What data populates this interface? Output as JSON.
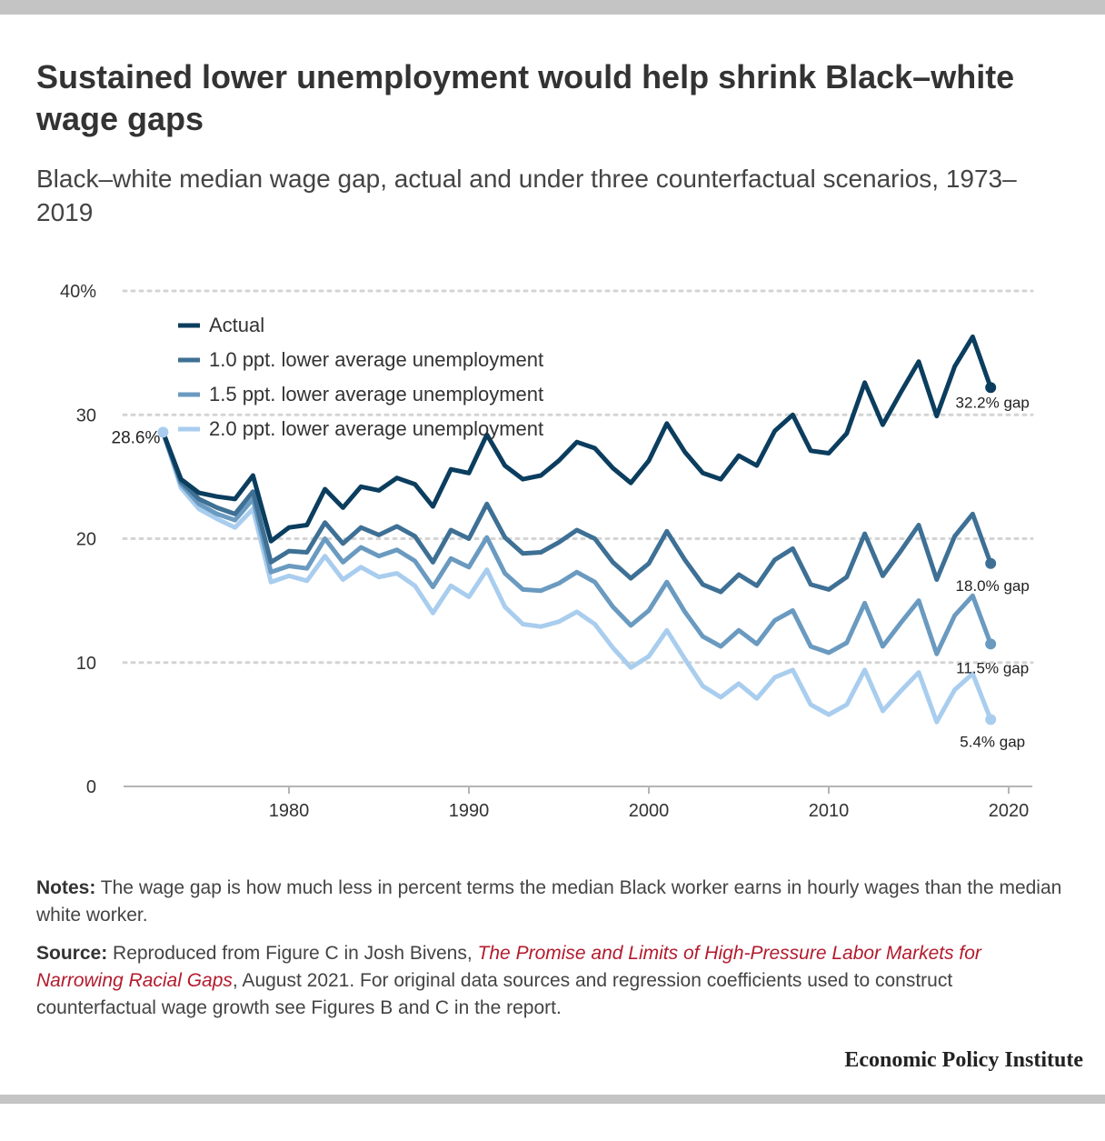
{
  "title": "Sustained lower unemployment would help shrink Black–white wage gaps",
  "subtitle": "Black–white median wage gap, actual and under three counterfactual scenarios, 1973–2019",
  "notes": {
    "notes_label": "Notes:",
    "notes_text": " The wage gap is how much less in percent terms the median Black worker earns in hourly wages than the median white worker.",
    "source_label": "Source:",
    "source_text_before": " Reproduced from Figure C in Josh Bivens, ",
    "source_link": "The Promise and Limits of High-Pressure Labor Markets for Narrowing Racial Gaps",
    "source_text_after": ", August 2021. For original data sources and regression coefficients used to construct counterfactual wage growth see Figures B and C in the report."
  },
  "brand": "Economic Policy Institute",
  "chart_data": {
    "type": "line",
    "title": "",
    "xlabel": "",
    "ylabel": "",
    "xlim": [
      1970,
      2020
    ],
    "ylim": [
      0,
      40
    ],
    "x_ticks": [
      1980,
      1990,
      2000,
      2010,
      2020
    ],
    "y_ticks": [
      0,
      10,
      20,
      30,
      40
    ],
    "y_tick_labels": [
      "0",
      "10",
      "20",
      "30",
      "40%"
    ],
    "grid": "horizontal dotted",
    "legend_position": "top-left",
    "x": [
      1973,
      1974,
      1975,
      1976,
      1977,
      1978,
      1979,
      1980,
      1981,
      1982,
      1983,
      1984,
      1985,
      1986,
      1987,
      1988,
      1989,
      1990,
      1991,
      1992,
      1993,
      1994,
      1995,
      1996,
      1997,
      1998,
      1999,
      2000,
      2001,
      2002,
      2003,
      2004,
      2005,
      2006,
      2007,
      2008,
      2009,
      2010,
      2011,
      2012,
      2013,
      2014,
      2015,
      2016,
      2017,
      2018,
      2019
    ],
    "series": [
      {
        "name": "Actual",
        "color": "#0b3d5e",
        "end_label": "32.2% gap",
        "values": [
          28.6,
          24.8,
          23.7,
          23.4,
          23.2,
          25.1,
          19.8,
          20.9,
          21.1,
          24.0,
          22.5,
          24.2,
          23.9,
          24.9,
          24.4,
          22.6,
          25.6,
          25.3,
          28.4,
          25.9,
          24.8,
          25.1,
          26.3,
          27.8,
          27.3,
          25.7,
          24.5,
          26.3,
          29.3,
          27.0,
          25.3,
          24.8,
          26.7,
          25.9,
          28.7,
          30.0,
          27.1,
          26.9,
          28.5,
          32.6,
          29.2,
          31.8,
          34.3,
          29.9,
          33.9,
          36.3,
          32.2
        ]
      },
      {
        "name": "1.0 ppt. lower average unemployment",
        "color": "#3e7095",
        "end_label": "18.0% gap",
        "values": [
          28.6,
          24.6,
          23.2,
          22.5,
          22.0,
          23.8,
          18.1,
          19.0,
          18.9,
          21.3,
          19.6,
          20.9,
          20.3,
          21.0,
          20.2,
          18.1,
          20.7,
          20.0,
          22.8,
          20.1,
          18.8,
          18.9,
          19.7,
          20.7,
          20.0,
          18.1,
          16.8,
          18.0,
          20.6,
          18.3,
          16.3,
          15.7,
          17.1,
          16.2,
          18.3,
          19.2,
          16.3,
          15.9,
          16.9,
          20.4,
          17.0,
          19.0,
          21.1,
          16.7,
          20.2,
          22.0,
          18.0
        ]
      },
      {
        "name": "1.5 ppt. lower average unemployment",
        "color": "#6a9ac0",
        "end_label": "11.5% gap",
        "values": [
          28.6,
          24.4,
          22.8,
          22.0,
          21.5,
          23.2,
          17.3,
          17.8,
          17.6,
          20.0,
          18.1,
          19.3,
          18.6,
          19.1,
          18.2,
          16.1,
          18.4,
          17.7,
          20.1,
          17.2,
          15.9,
          15.8,
          16.4,
          17.3,
          16.5,
          14.5,
          13.0,
          14.2,
          16.5,
          14.1,
          12.1,
          11.3,
          12.6,
          11.5,
          13.4,
          14.2,
          11.3,
          10.8,
          11.6,
          14.8,
          11.3,
          13.2,
          15.0,
          10.7,
          13.8,
          15.4,
          11.5
        ]
      },
      {
        "name": "2.0 ppt. lower average unemployment",
        "color": "#a9cdee",
        "end_label": "5.4% gap",
        "values": [
          28.6,
          24.1,
          22.4,
          21.6,
          20.9,
          22.4,
          16.5,
          17.0,
          16.6,
          18.6,
          16.7,
          17.7,
          16.9,
          17.2,
          16.2,
          14.0,
          16.2,
          15.3,
          17.5,
          14.5,
          13.1,
          12.9,
          13.3,
          14.1,
          13.1,
          11.2,
          9.6,
          10.5,
          12.6,
          10.3,
          8.1,
          7.2,
          8.3,
          7.1,
          8.8,
          9.4,
          6.6,
          5.8,
          6.6,
          9.4,
          6.1,
          7.7,
          9.2,
          5.2,
          7.8,
          9.1,
          5.4
        ]
      }
    ],
    "start_label": "28.6%"
  }
}
